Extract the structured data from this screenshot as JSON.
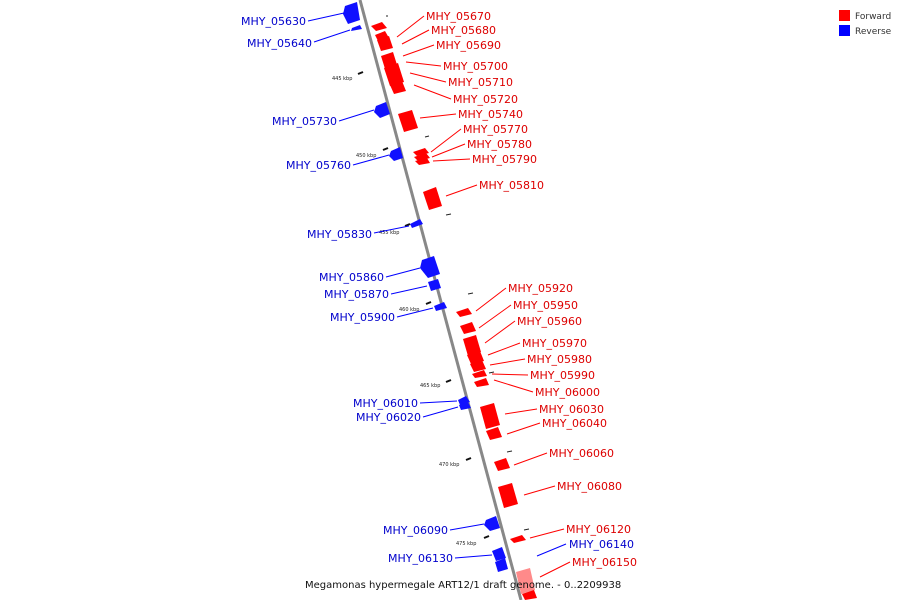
{
  "legend": {
    "forward_label": "Forward",
    "reverse_label": "Reverse",
    "forward_color": "#ff0000",
    "reverse_color": "#0000ff"
  },
  "caption": "Megamonas hypermegale ART12/1 draft genome. - 0..2209938",
  "ticks": [
    "445 kbp",
    "450 kbp",
    "455 kbp",
    "460 kbp",
    "465 kbp",
    "470 kbp",
    "475 kbp"
  ],
  "forward_genes": [
    "MHY_05670",
    "MHY_05680",
    "MHY_05690",
    "MHY_05700",
    "MHY_05710",
    "MHY_05720",
    "MHY_05740",
    "MHY_05770",
    "MHY_05780",
    "MHY_05790",
    "MHY_05810",
    "MHY_05920",
    "MHY_05950",
    "MHY_05960",
    "MHY_05970",
    "MHY_05980",
    "MHY_05990",
    "MHY_06000",
    "MHY_06030",
    "MHY_06040",
    "MHY_06060",
    "MHY_06080",
    "MHY_06120",
    "MHY_06150"
  ],
  "reverse_genes": [
    "MHY_05630",
    "MHY_05640",
    "MHY_05730",
    "MHY_05760",
    "MHY_05830",
    "MHY_05860",
    "MHY_05870",
    "MHY_05900",
    "MHY_06010",
    "MHY_06020",
    "MHY_06090",
    "MHY_06130",
    "MHY_06140"
  ]
}
